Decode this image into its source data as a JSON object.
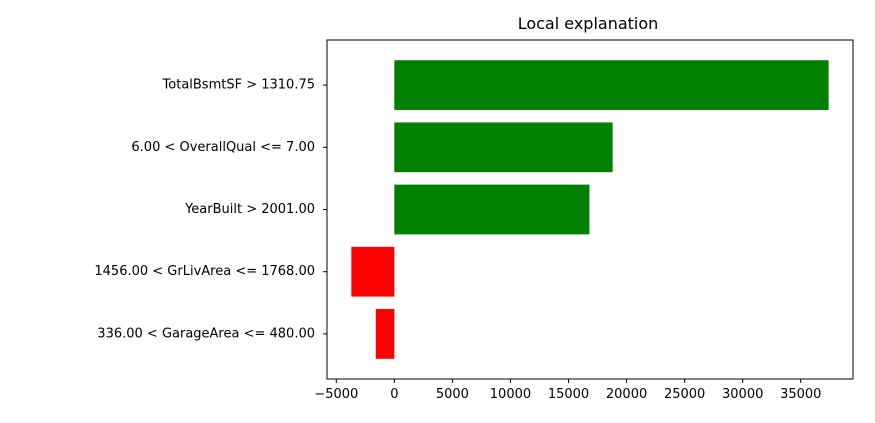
{
  "chart_data": {
    "type": "bar",
    "orientation": "horizontal",
    "title": "Local explanation",
    "xlabel": "",
    "ylabel": "",
    "categories": [
      "TotalBsmtSF > 1310.75",
      "6.00 < OverallQual <= 7.00",
      "YearBuilt > 2001.00",
      "1456.00 < GrLivArea <= 1768.00",
      "336.00 < GarageArea <= 480.00"
    ],
    "values": [
      37400,
      18800,
      16800,
      -3700,
      -1600
    ],
    "xlim": [
      -5800,
      39500
    ],
    "xticks": [
      -5000,
      0,
      5000,
      10000,
      15000,
      20000,
      25000,
      30000,
      35000
    ],
    "xtick_labels": [
      "−5000",
      "0",
      "5000",
      "10000",
      "15000",
      "20000",
      "25000",
      "30000",
      "35000"
    ],
    "positive_color": "#008000",
    "negative_color": "#ff0000",
    "grid": false
  }
}
